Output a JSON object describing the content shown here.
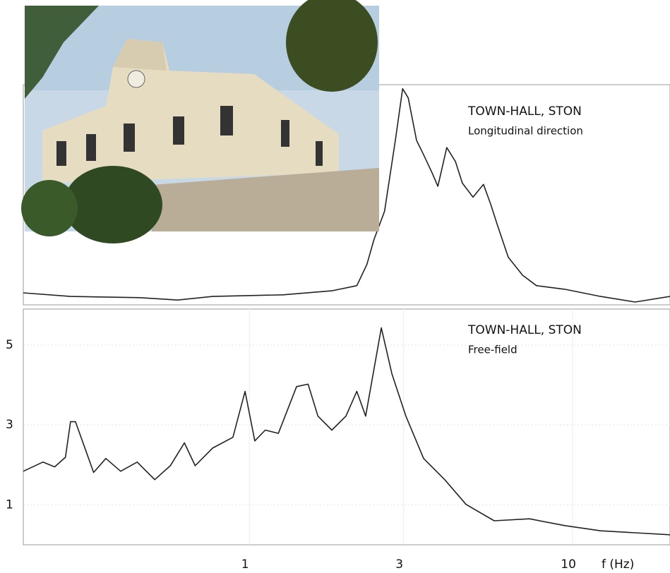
{
  "chart_data": [
    {
      "type": "line",
      "xscale": "log",
      "xlim": [
        0.2,
        20
      ],
      "ylim": [
        0,
        5.5
      ],
      "color": "#222222",
      "annotations": [
        "TOWN-HALL, STON",
        "Longitudinal direction"
      ],
      "x": [
        0.2,
        0.28,
        0.46,
        0.6,
        0.77,
        1.27,
        1.8,
        2.15,
        2.31,
        2.43,
        2.62,
        2.83,
        2.98,
        3.1,
        3.29,
        3.46,
        3.67,
        3.83,
        4.08,
        4.34,
        4.56,
        4.92,
        5.3,
        5.58,
        5.86,
        6.32,
        7.0,
        7.73,
        9.45,
        12.2,
        15.6,
        20
      ],
      "values": [
        0.3,
        0.21,
        0.18,
        0.12,
        0.21,
        0.25,
        0.35,
        0.48,
        1.01,
        1.63,
        2.34,
        4.11,
        5.4,
        5.17,
        4.11,
        3.75,
        3.31,
        2.96,
        3.93,
        3.58,
        3.04,
        2.69,
        3.01,
        2.51,
        1.98,
        1.19,
        0.74,
        0.48,
        0.39,
        0.21,
        0.07,
        0.21
      ]
    },
    {
      "type": "line",
      "xscale": "log",
      "xlim": [
        0.2,
        20
      ],
      "ylim": [
        0,
        5.9
      ],
      "color": "#222222",
      "grid": true,
      "annotations": [
        "TOWN-HALL, STON",
        "Free-field"
      ],
      "yticks": [
        1,
        3,
        5
      ],
      "xticks": [
        1,
        3,
        10
      ],
      "xlabel": "f (Hz)",
      "x": [
        0.2,
        0.23,
        0.25,
        0.27,
        0.28,
        0.29,
        0.33,
        0.36,
        0.4,
        0.45,
        0.51,
        0.57,
        0.63,
        0.68,
        0.77,
        0.89,
        0.97,
        1.04,
        1.12,
        1.23,
        1.4,
        1.52,
        1.63,
        1.8,
        1.99,
        2.15,
        2.29,
        2.56,
        2.76,
        3.05,
        3.46,
        4.02,
        4.68,
        5.72,
        7.35,
        9.45,
        12.2,
        15.6,
        20
      ],
      "values": [
        1.84,
        2.07,
        1.95,
        2.19,
        3.08,
        3.08,
        1.81,
        2.16,
        1.84,
        2.07,
        1.63,
        1.98,
        2.55,
        1.98,
        2.42,
        2.69,
        3.84,
        2.6,
        2.87,
        2.79,
        3.96,
        4.02,
        3.22,
        2.87,
        3.22,
        3.84,
        3.22,
        5.43,
        4.28,
        3.22,
        2.16,
        1.63,
        1.01,
        0.6,
        0.65,
        0.48,
        0.35,
        0.3,
        0.25
      ]
    }
  ]
}
